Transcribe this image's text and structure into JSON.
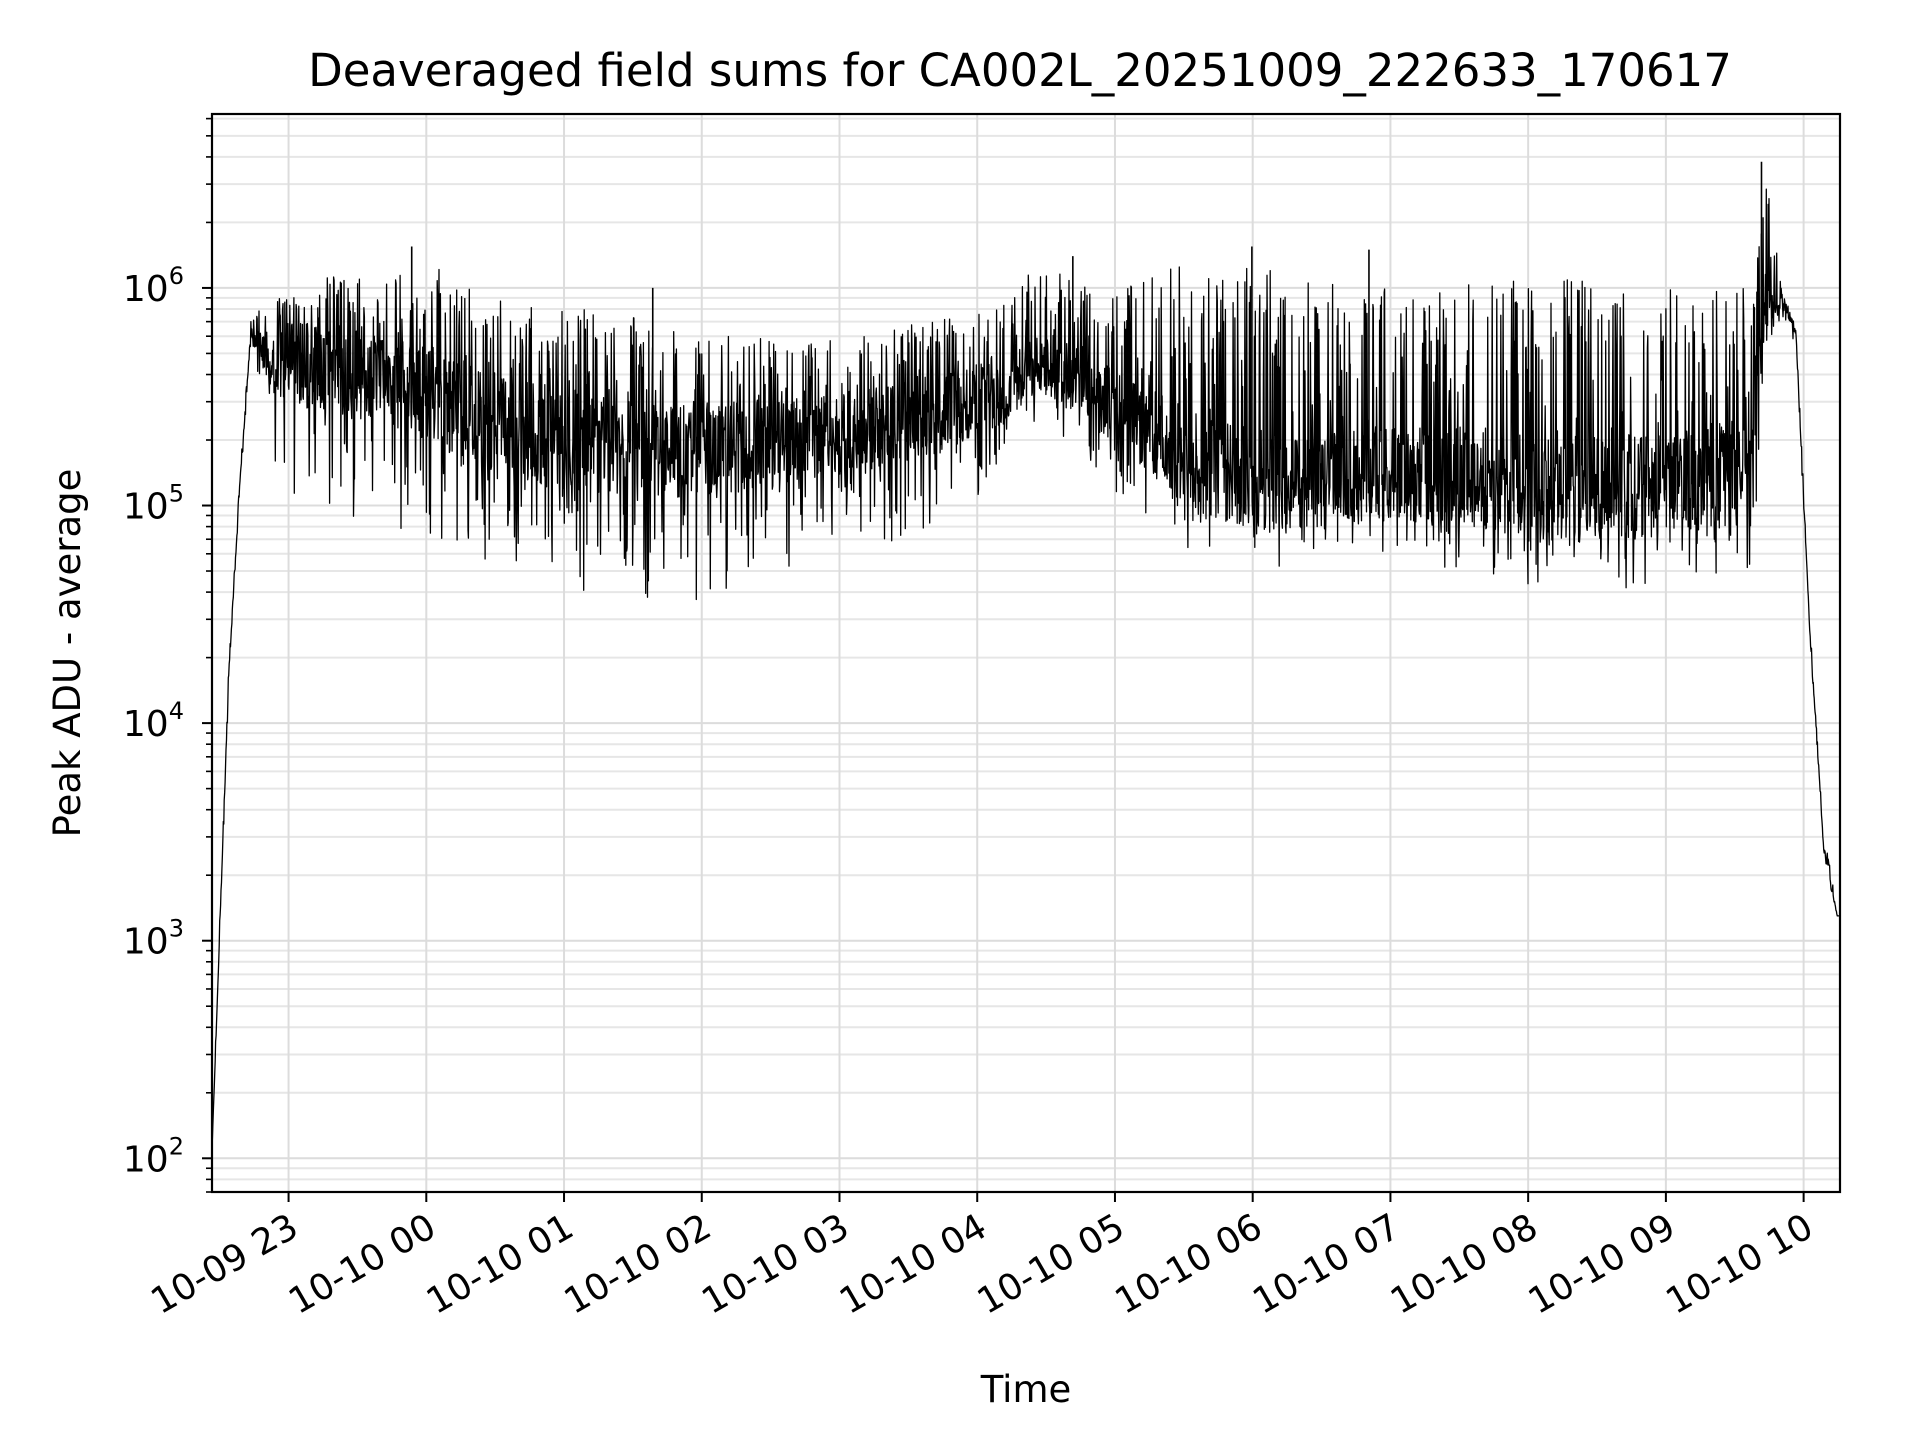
{
  "chart_data": {
    "type": "line",
    "title": "Deaveraged field sums for CA002L_20251009_222633_170617",
    "xlabel": "Time",
    "ylabel": "Peak ADU - average",
    "yscale": "log",
    "grid": true,
    "line_color": "#000000",
    "x_tick_labels": [
      "10-09 23",
      "10-10 00",
      "10-10 01",
      "10-10 02",
      "10-10 03",
      "10-10 04",
      "10-10 05",
      "10-10 06",
      "10-10 07",
      "10-10 08",
      "10-10 09",
      "10-10 10"
    ],
    "x_tick_hours": [
      0.5559,
      1.5559,
      2.5559,
      3.5559,
      4.5559,
      5.5559,
      6.5559,
      7.5559,
      8.5559,
      9.5559,
      10.5559,
      11.5559
    ],
    "xlim_hours": [
      0,
      11.82
    ],
    "x_unit": "hours since 2025-10-09 22:26:33",
    "y_tick_exponents": [
      2,
      3,
      4,
      5,
      6
    ],
    "ylim": [
      70,
      6300000
    ],
    "envelope": {
      "hours": [
        0.0,
        0.06,
        0.12,
        0.2,
        0.28,
        0.4,
        0.5,
        0.6,
        0.8,
        1.0,
        1.2,
        1.4,
        1.55,
        1.7,
        1.9,
        2.1,
        2.4,
        2.8,
        3.2,
        3.6,
        3.9,
        4.3,
        4.7,
        5.1,
        5.4,
        5.7,
        6.0,
        6.3,
        6.5,
        6.7,
        6.9,
        7.1,
        7.4,
        7.7,
        7.9,
        8.2,
        8.5,
        8.8,
        9.0,
        9.3,
        9.6,
        9.9,
        10.2,
        10.4,
        10.6,
        10.8,
        10.95,
        11.1,
        11.2,
        11.27,
        11.4,
        11.5,
        11.6,
        11.7,
        11.74,
        11.8
      ],
      "upper": [
        110,
        1500,
        18000,
        130000,
        700000,
        900000,
        1000000,
        1100000,
        1150000,
        1150000,
        1100000,
        1250000,
        1350000,
        1200000,
        1000000,
        900000,
        850000,
        780000,
        720000,
        660000,
        600000,
        560000,
        620000,
        700000,
        750000,
        800000,
        1300000,
        1050000,
        900000,
        1100000,
        1250000,
        1300000,
        1250000,
        1200000,
        1100000,
        1050000,
        1000000,
        1050000,
        1100000,
        1100000,
        1050000,
        1100000,
        1050000,
        1050000,
        1000000,
        950000,
        1000000,
        1050000,
        1000000,
        3800000,
        950000,
        700000,
        30000,
        3000,
        2400,
        1300
      ],
      "lower": [
        110,
        1200,
        14000,
        110000,
        500000,
        250000,
        80000,
        80000,
        70000,
        65000,
        70000,
        75000,
        70000,
        60000,
        50000,
        45000,
        40000,
        35000,
        33000,
        35000,
        40000,
        45000,
        50000,
        60000,
        80000,
        110000,
        250000,
        150000,
        100000,
        90000,
        75000,
        60000,
        55000,
        50000,
        55000,
        58000,
        55000,
        55000,
        50000,
        45000,
        40000,
        40000,
        40000,
        40000,
        40000,
        40000,
        38000,
        38000,
        45000,
        400000,
        700000,
        500000,
        25000,
        2600,
        1800,
        1300
      ],
      "typical": [
        110,
        1300,
        16000,
        120000,
        600000,
        500000,
        450000,
        450000,
        430000,
        400000,
        380000,
        350000,
        330000,
        300000,
        260000,
        240000,
        210000,
        190000,
        180000,
        180000,
        190000,
        200000,
        220000,
        250000,
        280000,
        320000,
        450000,
        380000,
        300000,
        250000,
        200000,
        160000,
        140000,
        130000,
        130000,
        140000,
        140000,
        140000,
        140000,
        130000,
        120000,
        120000,
        120000,
        120000,
        125000,
        130000,
        140000,
        150000,
        300000,
        800000,
        850000,
        650000,
        27000,
        2800,
        2000,
        1300
      ]
    },
    "notable_peaks": [
      {
        "hour": 1.45,
        "value": 1550000
      },
      {
        "hour": 3.2,
        "value": 1000000
      },
      {
        "hour": 6.25,
        "value": 1400000
      },
      {
        "hour": 7.55,
        "value": 1550000
      },
      {
        "hour": 8.4,
        "value": 1500000
      },
      {
        "hour": 11.25,
        "value": 3800000
      }
    ]
  }
}
